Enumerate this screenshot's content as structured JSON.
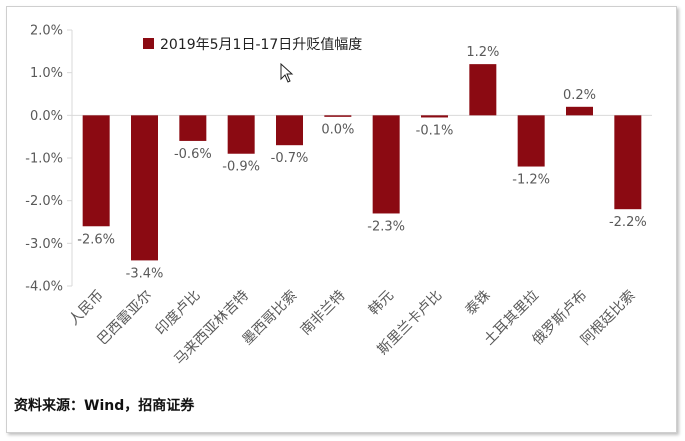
{
  "chart_data": {
    "type": "bar",
    "title": "",
    "xlabel": "",
    "ylabel": "",
    "ylim": [
      -4.0,
      2.0
    ],
    "yticks": [
      "2.0%",
      "1.0%",
      "0.0%",
      "-1.0%",
      "-2.0%",
      "-3.0%",
      "-4.0%"
    ],
    "grid": false,
    "legend": "top-left inside plot",
    "categories": [
      "人民币",
      "巴西雷亚尔",
      "印度卢比",
      "马来西亚林吉特",
      "墨西哥比索",
      "南非兰特",
      "韩元",
      "斯里兰卡卢比",
      "泰铢",
      "土耳其里拉",
      "俄罗斯卢布",
      "阿根廷比索"
    ],
    "series": [
      {
        "name": "2019年5月1日-17日升贬值幅度",
        "values": [
          -2.6,
          -3.4,
          -0.6,
          -0.9,
          -0.7,
          -0.03,
          -2.3,
          -0.05,
          1.2,
          -1.2,
          0.2,
          -2.2
        ],
        "data_labels": [
          "-2.6%",
          "-3.4%",
          "-0.6%",
          "-0.9%",
          "-0.7%",
          "0.0%",
          "-2.3%",
          "-0.1%",
          "1.2%",
          "-1.2%",
          "0.2%",
          "-2.2%"
        ],
        "color": "#8b0a12"
      }
    ]
  },
  "source_note": "资料来源：Wind，招商证券",
  "colors": {
    "bar": "#8b0a12",
    "axis": "#d9d9d9",
    "text": "#595959"
  },
  "cursor_icon": "arrow-cursor-icon"
}
